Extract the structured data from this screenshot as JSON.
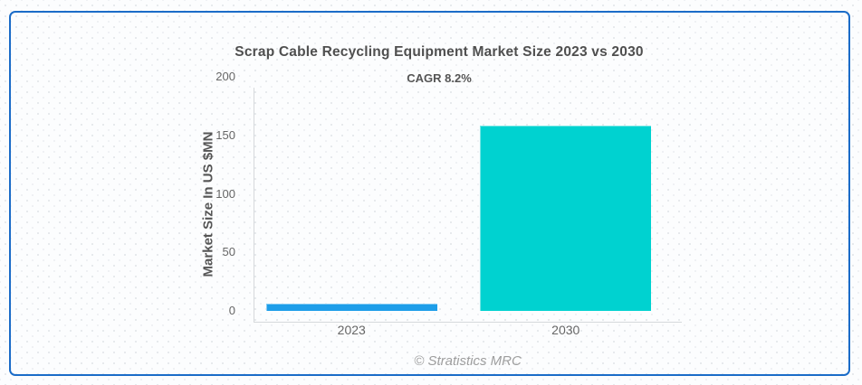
{
  "card": {
    "border_color": "#1b6cc8"
  },
  "chart_data": {
    "type": "bar",
    "title": "Scrap Cable Recycling Equipment Market Size 2023 vs 2030",
    "subtitle": "CAGR 8.2%",
    "categories": [
      "2023",
      "2030"
    ],
    "values": [
      6.5,
      158
    ],
    "bar_colors": [
      "#1e9ee9",
      "#00d2d0"
    ],
    "xlabel": "",
    "ylabel": "Market Size In US $MN",
    "ylim": [
      0,
      200
    ],
    "yticks": [
      0,
      50,
      100,
      150,
      200
    ],
    "grid": false,
    "legend": "none",
    "footer": "© Stratistics MRC"
  }
}
